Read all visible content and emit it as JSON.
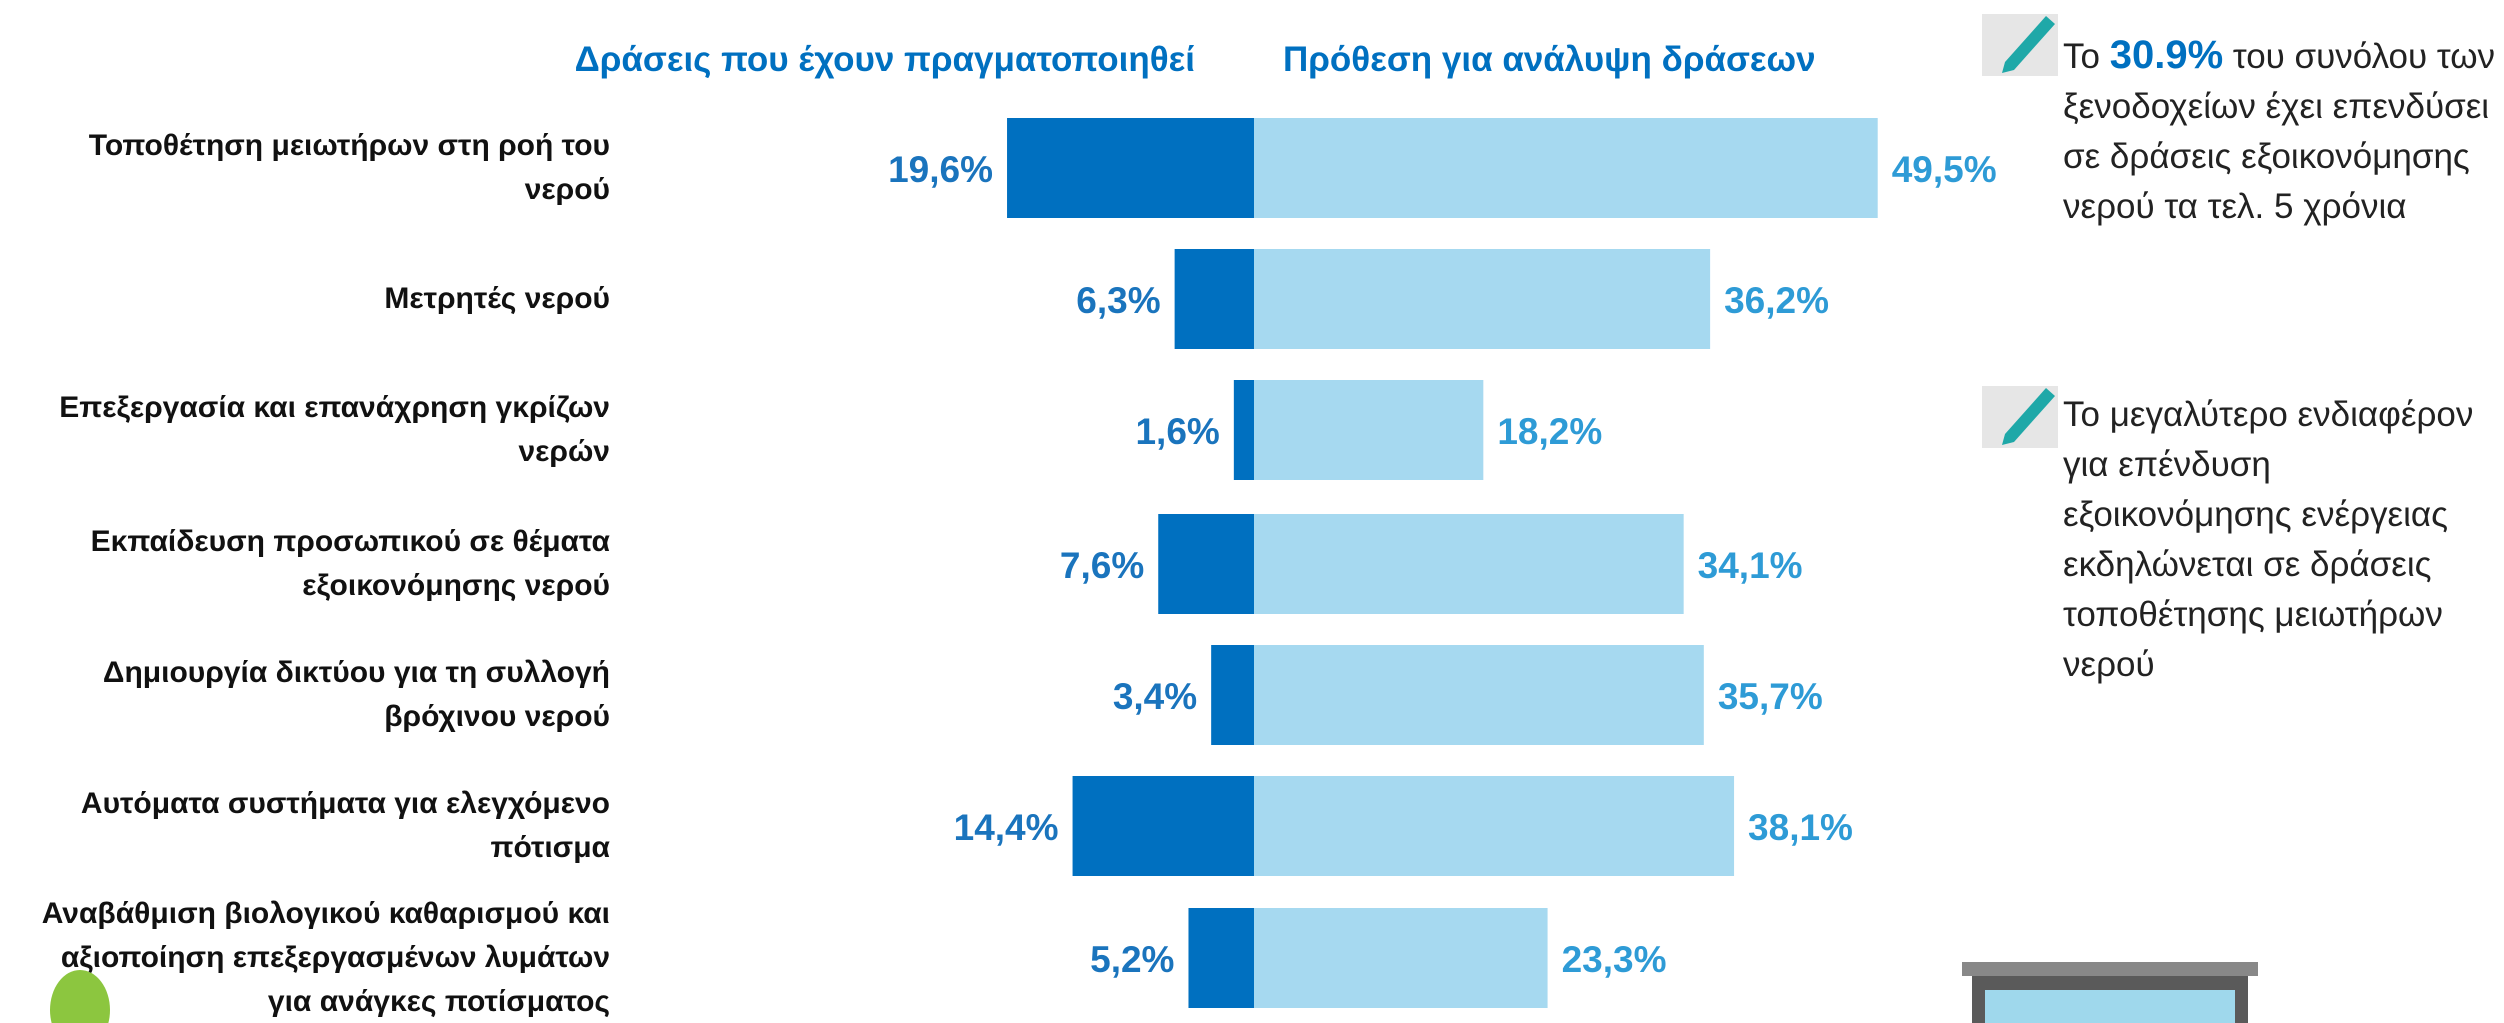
{
  "chart_data": {
    "type": "bar",
    "categories": [
      "Τοποθέτηση μειωτήρων στη ροή του νερού",
      "Μετρητές νερού",
      "Επεξεργασία και επανάχρηση γκρίζων νερών",
      "Εκπαίδευση προσωπικού σε θέματα εξοικονόμησης νερού",
      "Δημιουργία δικτύου για τη συλλογή βρόχινου νερού",
      "Αυτόματα συστήματα για ελεγχόμενο πότισμα",
      "Αναβάθμιση βιολογικού καθαρισμού και αξιοποίηση επεξεργασμένων λυμάτων για ανάγκες ποτίσματος"
    ],
    "series": [
      {
        "name": "Δράσεις που έχουν πραγματοποιηθεί",
        "color": "#0070c0",
        "label_color": "#1a74bd",
        "values": [
          19.6,
          6.3,
          1.6,
          7.6,
          3.4,
          14.4,
          5.2
        ],
        "value_labels": [
          "19,6%",
          "6,3%",
          "1,6%",
          "7,6%",
          "3,4%",
          "14,4%",
          "5,2%"
        ]
      },
      {
        "name": "Πρόθεση για ανάλυψη δράσεων",
        "color": "#a6d9f0",
        "label_color": "#2e9bd6",
        "values": [
          49.5,
          36.2,
          18.2,
          34.1,
          35.7,
          38.1,
          23.3
        ],
        "value_labels": [
          "49,5%",
          "36,2%",
          "18,2%",
          "34,1%",
          "35,7%",
          "38,1%",
          "23,3%"
        ]
      }
    ]
  },
  "notes": [
    {
      "before": "Το ",
      "highlight": "30.9%",
      "after": " του συνόλου των ξενοδοχείων έχει επενδύσει σε δράσεις εξοικονόμησης νερού τα τελ. 5 χρόνια"
    },
    {
      "before": "Το μεγαλύτερο ενδιαφέρον για επένδυση εξοικονόμησης ενέργειας εκδηλώνεται σε δράσεις τοποθέτησης μειωτήρων νερού"
    }
  ]
}
